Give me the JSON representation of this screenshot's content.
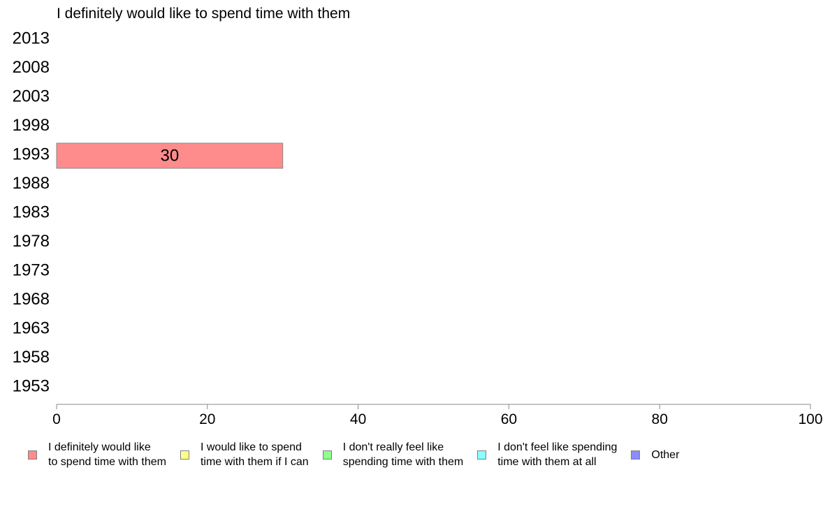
{
  "chart_data": {
    "type": "bar",
    "orientation": "horizontal",
    "title": "I definitely would like to spend time with them",
    "categories": [
      "2013",
      "2008",
      "2003",
      "1998",
      "1993",
      "1988",
      "1983",
      "1978",
      "1973",
      "1968",
      "1963",
      "1958",
      "1953"
    ],
    "series": [
      {
        "name": "I definitely would like to spend time with them",
        "color": "#ff8c8c",
        "values": [
          null,
          null,
          null,
          null,
          30,
          null,
          null,
          null,
          null,
          null,
          null,
          null,
          null
        ]
      }
    ],
    "data_labels": [
      "",
      "",
      "",
      "",
      "30",
      "",
      "",
      "",
      "",
      "",
      "",
      "",
      ""
    ],
    "xlim": [
      0,
      100
    ],
    "xticks": [
      "0",
      "20",
      "40",
      "60",
      "80",
      "100"
    ],
    "grid": false,
    "legend_position": "bottom",
    "legend": [
      {
        "label": "I definitely would like\nto spend time with them",
        "line1": "I definitely would like",
        "line2": "to spend time with them",
        "color": "#ff8c8c"
      },
      {
        "label": "I would like to spend\ntime with them if I can",
        "line1": "I would like to spend",
        "line2": "time with them if I can",
        "color": "#ffff8c"
      },
      {
        "label": "I don't really feel like\nspending time with them",
        "line1": "I don't really feel like",
        "line2": "spending time with them",
        "color": "#8cff8c"
      },
      {
        "label": "I don't feel like spending\ntime with them at all",
        "line1": "I don't feel like spending",
        "line2": "time with them at all",
        "color": "#8cffff"
      },
      {
        "label": "Other",
        "line1": "Other",
        "line2": "",
        "color": "#8c8cff"
      }
    ]
  }
}
